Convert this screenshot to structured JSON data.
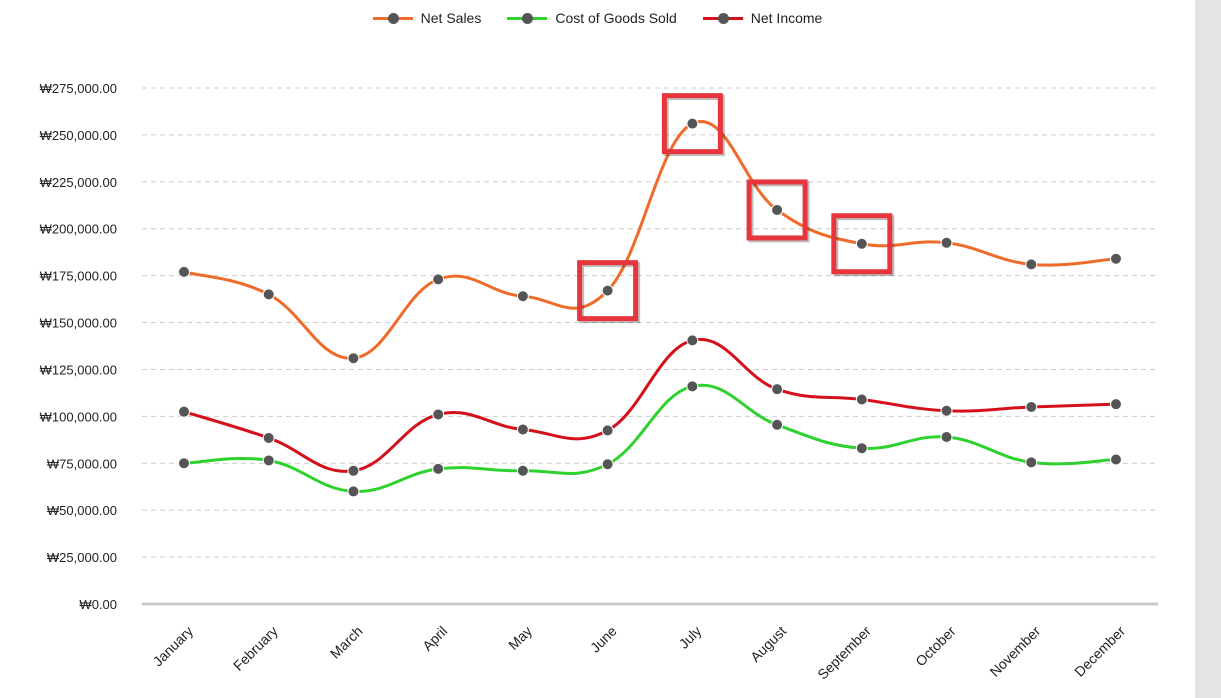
{
  "chart_data": {
    "type": "line",
    "title": "",
    "xlabel": "",
    "ylabel": "",
    "categories": [
      "January",
      "February",
      "March",
      "April",
      "May",
      "June",
      "July",
      "August",
      "September",
      "October",
      "November",
      "December"
    ],
    "series": [
      {
        "name": "Net Sales",
        "color": "#ef6b2a",
        "values": [
          177000,
          165000,
          131000,
          173000,
          164000,
          167000,
          256000,
          210000,
          192000,
          192500,
          181000,
          184000
        ]
      },
      {
        "name": "Cost of Goods Sold",
        "color": "#2ed12e",
        "values": [
          75000,
          76500,
          60000,
          72000,
          71000,
          74500,
          116000,
          95500,
          83000,
          89000,
          75500,
          77000
        ]
      },
      {
        "name": "Net Income",
        "color": "#d4101a",
        "values": [
          102500,
          88500,
          71000,
          101000,
          93000,
          92500,
          140500,
          114500,
          109000,
          103000,
          105000,
          106500
        ]
      }
    ],
    "y_ticks": [
      "₩0.00",
      "₩25,000.00",
      "₩50,000.00",
      "₩75,000.00",
      "₩100,000.00",
      "₩125,000.00",
      "₩150,000.00",
      "₩175,000.00",
      "₩200,000.00",
      "₩225,000.00",
      "₩250,000.00",
      "₩275,000.00"
    ],
    "ylim": [
      0,
      275000
    ],
    "grid": true,
    "legend_position": "top-center",
    "marker_color": "#555555",
    "highlight_color": "#e8343c",
    "highlighted_categories": [
      "June",
      "July",
      "August",
      "September"
    ],
    "highlighted_series": "Net Sales"
  }
}
